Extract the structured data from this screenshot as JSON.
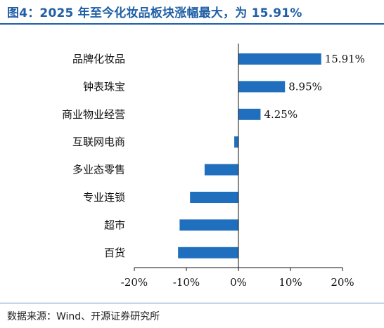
{
  "figure": {
    "title": "图4：2025 年至今化妆品板块涨幅最大，为 15.91%",
    "source": "数据来源：Wind、开源证券研究所"
  },
  "colors": {
    "bar": "#1f6fbe",
    "accent": "#1f5fa6"
  },
  "chart_data": {
    "type": "bar",
    "orientation": "horizontal",
    "categories": [
      "品牌化妆品",
      "钟表珠宝",
      "商业物业经营",
      "互联网电商",
      "多业态零售",
      "专业连锁",
      "超市",
      "百货"
    ],
    "values": [
      15.91,
      8.95,
      4.25,
      -0.8,
      -6.5,
      -9.3,
      -11.3,
      -11.6
    ],
    "data_labels": [
      "15.91%",
      "8.95%",
      "4.25%",
      "",
      "",
      "",
      "",
      ""
    ],
    "xlim": [
      -20,
      20
    ],
    "xticks": [
      -20,
      -10,
      0,
      10,
      20
    ],
    "xtick_labels": [
      "-20%",
      "-10%",
      "0%",
      "10%",
      "20%"
    ],
    "grid": false,
    "legend": "none"
  }
}
